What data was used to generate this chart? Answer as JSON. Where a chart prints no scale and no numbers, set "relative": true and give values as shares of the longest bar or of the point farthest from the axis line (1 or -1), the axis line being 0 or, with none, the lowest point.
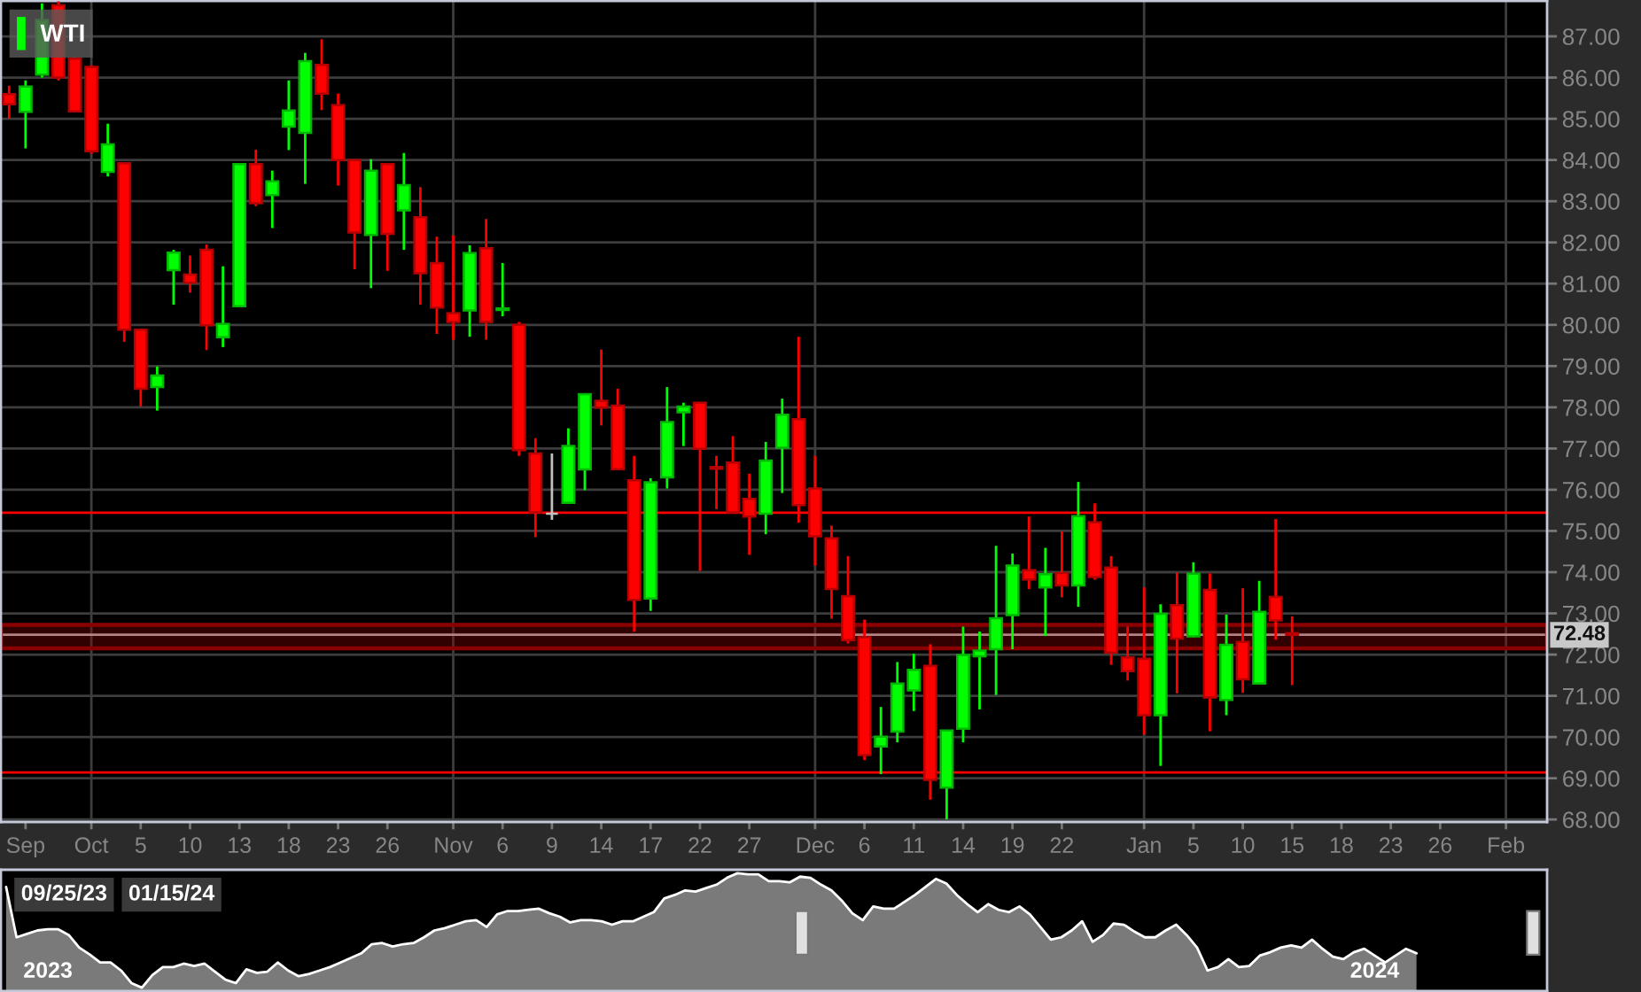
{
  "chart_data": [
    {
      "type": "candlestick",
      "categories": [
        null,
        "Sep",
        null,
        null,
        null,
        "Oct",
        null,
        null,
        "5",
        null,
        null,
        "10",
        null,
        null,
        "13",
        null,
        null,
        "18",
        null,
        null,
        "23",
        null,
        null,
        "26",
        null,
        null,
        null,
        "Nov",
        null,
        null,
        "6",
        null,
        null,
        "9",
        null,
        null,
        "14",
        null,
        null,
        "17",
        null,
        null,
        "22",
        null,
        null,
        "27",
        null,
        null,
        null,
        "Dec",
        null,
        null,
        "6",
        null,
        null,
        "11",
        null,
        null,
        "14",
        null,
        null,
        "19",
        null,
        null,
        "22",
        null,
        null,
        null,
        null,
        "Jan",
        null,
        null,
        "5",
        null,
        null,
        "10",
        null,
        null,
        "15",
        null,
        null,
        "18",
        null,
        null,
        "23",
        null,
        null,
        "26",
        null,
        null,
        null,
        "Feb",
        null,
        null
      ],
      "series": [
        {
          "name": "WTI",
          "color": "#00ff00",
          "ohlc": [
            [
              85.6,
              85.8,
              85.0,
              85.35
            ],
            [
              85.17,
              85.93,
              84.28,
              85.78
            ],
            [
              86.07,
              87.8,
              86.0,
              87.4
            ],
            [
              87.75,
              87.85,
              85.93,
              86.0
            ],
            [
              86.46,
              86.5,
              85.15,
              85.18
            ],
            [
              86.26,
              86.3,
              84.15,
              84.21
            ],
            [
              83.71,
              84.88,
              83.6,
              84.38
            ],
            [
              83.92,
              83.95,
              79.59,
              79.88
            ],
            [
              79.88,
              79.9,
              78.02,
              78.45
            ],
            [
              78.49,
              78.99,
              77.92,
              78.77
            ],
            [
              81.33,
              81.82,
              80.49,
              81.75
            ],
            [
              81.22,
              81.68,
              80.78,
              81.02
            ],
            [
              81.82,
              81.95,
              79.39,
              79.99
            ],
            [
              79.7,
              81.42,
              79.46,
              80.02
            ],
            [
              80.45,
              83.92,
              80.45,
              83.9
            ],
            [
              83.9,
              84.25,
              82.88,
              82.95
            ],
            [
              83.15,
              83.74,
              82.35,
              83.48
            ],
            [
              84.81,
              85.93,
              84.24,
              85.2
            ],
            [
              84.66,
              86.6,
              83.42,
              86.4
            ],
            [
              86.31,
              86.93,
              85.21,
              85.61
            ],
            [
              85.33,
              85.61,
              83.38,
              84.0
            ],
            [
              84.0,
              84.02,
              81.35,
              82.24
            ],
            [
              82.18,
              84.02,
              80.89,
              83.74
            ],
            [
              83.9,
              83.92,
              81.31,
              82.21
            ],
            [
              82.78,
              84.17,
              81.82,
              83.39
            ],
            [
              82.61,
              83.34,
              80.49,
              81.25
            ],
            [
              81.5,
              82.14,
              79.78,
              80.42
            ],
            [
              80.28,
              82.17,
              79.64,
              80.07
            ],
            [
              80.35,
              81.93,
              79.71,
              81.74
            ],
            [
              81.86,
              82.57,
              79.64,
              80.07
            ],
            [
              80.36,
              81.5,
              80.21,
              80.4
            ],
            [
              80.0,
              80.07,
              76.82,
              76.96
            ],
            [
              76.88,
              77.25,
              74.85,
              75.45
            ],
            [
              75.42,
              76.88,
              75.27,
              75.42
            ],
            [
              75.68,
              77.49,
              75.66,
              77.06
            ],
            [
              76.49,
              78.34,
              75.99,
              78.32
            ],
            [
              78.16,
              79.4,
              77.56,
              77.99
            ],
            [
              78.04,
              78.45,
              76.48,
              76.5
            ],
            [
              76.23,
              76.82,
              72.56,
              73.33
            ],
            [
              73.36,
              76.28,
              73.06,
              76.18
            ],
            [
              76.3,
              78.49,
              76.03,
              77.64
            ],
            [
              77.88,
              78.11,
              77.06,
              78.02
            ],
            [
              78.11,
              78.13,
              74.03,
              76.99
            ],
            [
              76.55,
              76.82,
              75.53,
              76.51
            ],
            [
              76.66,
              77.3,
              75.42,
              75.45
            ],
            [
              75.78,
              76.39,
              74.42,
              75.35
            ],
            [
              75.42,
              77.16,
              74.92,
              76.71
            ],
            [
              77.02,
              78.21,
              75.92,
              77.82
            ],
            [
              77.71,
              79.71,
              75.2,
              75.63
            ],
            [
              76.03,
              76.82,
              74.16,
              74.87
            ],
            [
              74.82,
              75.13,
              72.87,
              73.59
            ],
            [
              73.42,
              74.39,
              72.27,
              72.35
            ],
            [
              72.42,
              72.85,
              69.44,
              69.56
            ],
            [
              69.77,
              70.73,
              69.1,
              70.01
            ],
            [
              70.13,
              71.82,
              69.87,
              71.3
            ],
            [
              71.13,
              72.02,
              70.63,
              71.63
            ],
            [
              71.73,
              72.25,
              68.48,
              68.96
            ],
            [
              68.77,
              70.17,
              68.0,
              70.16
            ],
            [
              70.2,
              72.68,
              69.87,
              71.99
            ],
            [
              71.96,
              72.56,
              70.67,
              72.1
            ],
            [
              72.13,
              74.64,
              71.02,
              72.88
            ],
            [
              72.96,
              74.45,
              72.13,
              74.16
            ],
            [
              74.05,
              75.35,
              73.59,
              73.82
            ],
            [
              73.63,
              74.59,
              72.45,
              73.95
            ],
            [
              73.98,
              74.99,
              73.39,
              73.68
            ],
            [
              73.68,
              76.19,
              73.16,
              75.36
            ],
            [
              75.21,
              75.67,
              73.82,
              73.88
            ],
            [
              74.11,
              74.39,
              71.75,
              72.05
            ],
            [
              71.93,
              72.68,
              71.37,
              71.6
            ],
            [
              71.9,
              73.63,
              70.06,
              70.53
            ],
            [
              70.53,
              73.22,
              69.3,
              72.99
            ],
            [
              73.2,
              73.99,
              71.06,
              72.39
            ],
            [
              72.44,
              74.24,
              72.42,
              73.96
            ],
            [
              73.57,
              73.97,
              70.14,
              70.96
            ],
            [
              70.9,
              72.97,
              70.53,
              72.24
            ],
            [
              72.31,
              73.61,
              71.07,
              71.4
            ],
            [
              71.3,
              73.79,
              71.28,
              73.04
            ],
            [
              73.4,
              75.29,
              72.36,
              72.83
            ],
            [
              72.52,
              72.93,
              71.26,
              72.48
            ],
            null,
            null,
            null,
            null,
            null,
            null,
            null,
            null,
            null,
            null,
            null,
            null,
            null,
            null,
            null
          ],
          "colors": [
            "#ff0000",
            "#00ff00",
            "#00ff00",
            "#ff0000",
            "#ff0000",
            "#ff0000",
            "#00ff00",
            "#ff0000",
            "#ff0000",
            "#00ff00",
            "#00ff00",
            "#ff0000",
            "#ff0000",
            "#00ff00",
            "#00ff00",
            "#ff0000",
            "#00ff00",
            "#00ff00",
            "#00ff00",
            "#ff0000",
            "#ff0000",
            "#ff0000",
            "#00ff00",
            "#ff0000",
            "#00ff00",
            "#ff0000",
            "#ff0000",
            "#ff0000",
            "#00ff00",
            "#ff0000",
            "#00ff00",
            "#ff0000",
            "#ff0000",
            "#c0c0c0",
            "#00ff00",
            "#00ff00",
            "#ff0000",
            "#ff0000",
            "#ff0000",
            "#00ff00",
            "#00ff00",
            "#00ff00",
            "#ff0000",
            "#ff0000",
            "#ff0000",
            "#ff0000",
            "#00ff00",
            "#00ff00",
            "#ff0000",
            "#ff0000",
            "#ff0000",
            "#ff0000",
            "#ff0000",
            "#00ff00",
            "#00ff00",
            "#00ff00",
            "#ff0000",
            "#00ff00",
            "#00ff00",
            "#00ff00",
            "#00ff00",
            "#00ff00",
            "#ff0000",
            "#00ff00",
            "#ff0000",
            "#00ff00",
            "#ff0000",
            "#ff0000",
            "#ff0000",
            "#ff0000",
            "#00ff00",
            "#ff0000",
            "#00ff00",
            "#ff0000",
            "#00ff00",
            "#ff0000",
            "#00ff00",
            "#ff0000",
            "#ff0000",
            null,
            null,
            null,
            null,
            null,
            null,
            null,
            null,
            null,
            null,
            null,
            null,
            null,
            null,
            null
          ]
        }
      ],
      "ylim": [
        67.94,
        87.86
      ],
      "yticks": [
        {
          "value": 68,
          "label": "68.00"
        },
        {
          "value": 69,
          "label": "69.00"
        },
        {
          "value": 70,
          "label": "70.00"
        },
        {
          "value": 71,
          "label": "71.00"
        },
        {
          "value": 72,
          "label": "72.00"
        },
        {
          "value": 73,
          "label": "73.00"
        },
        {
          "value": 74,
          "label": "74.00"
        },
        {
          "value": 75,
          "label": "75.00"
        },
        {
          "value": 76,
          "label": "76.00"
        },
        {
          "value": 77,
          "label": "77.00"
        },
        {
          "value": 78,
          "label": "78.00"
        },
        {
          "value": 79,
          "label": "79.00"
        },
        {
          "value": 80,
          "label": "80.00"
        },
        {
          "value": 81,
          "label": "81.00"
        },
        {
          "value": 82,
          "label": "82.00"
        },
        {
          "value": 83,
          "label": "83.00"
        },
        {
          "value": 84,
          "label": "84.00"
        },
        {
          "value": 85,
          "label": "85.00"
        },
        {
          "value": 86,
          "label": "86.00"
        },
        {
          "value": 87,
          "label": "87.00"
        }
      ],
      "grid": "y",
      "legend": "top left",
      "ref_lines": [
        {
          "axis": "y",
          "value": 72.48,
          "label": "72.48",
          "color": "#c8c8c8"
        },
        {
          "axis": "y",
          "value": 75.44,
          "color": "#ff0000"
        },
        {
          "axis": "y",
          "value": 69.14,
          "color": "#ff0000"
        },
        {
          "axis": "x",
          "value": "Oct",
          "color": "#3d3d3d"
        },
        {
          "axis": "x",
          "value": "Nov",
          "color": "#3d3d3d"
        },
        {
          "axis": "x",
          "value": "Dec",
          "color": "#3d3d3d"
        },
        {
          "axis": "x",
          "value": "Jan",
          "color": "#3d3d3d"
        },
        {
          "axis": "x",
          "value": "Feb",
          "color": "#3d3d3d"
        }
      ],
      "bands": [
        {
          "axis": "y",
          "from": 72.15,
          "to": 72.72,
          "color": "#8b0000"
        }
      ]
    },
    {
      "type": "area",
      "relative": true,
      "color": "#7a7a7a",
      "categories": [
        null,
        null,
        null,
        null,
        "2023",
        null,
        null,
        null,
        null,
        null,
        null,
        null,
        null,
        null,
        null,
        null,
        null,
        null,
        null,
        null,
        null,
        null,
        null,
        null,
        null,
        null,
        null,
        null,
        null,
        null,
        null,
        null,
        null,
        null,
        null,
        null,
        null,
        null,
        null,
        null,
        null,
        null,
        null,
        null,
        null,
        null,
        null,
        null,
        null,
        null,
        null,
        null,
        null,
        null,
        null,
        null,
        null,
        null,
        null,
        null,
        null,
        null,
        null,
        null,
        null,
        null,
        null,
        null,
        null,
        null,
        null,
        null,
        null,
        null,
        null,
        null,
        null,
        null,
        null,
        null,
        null,
        null,
        null,
        null,
        null,
        null,
        null,
        null,
        null,
        null,
        null,
        null,
        null,
        null,
        null,
        null,
        null,
        null,
        null,
        null,
        null,
        null,
        null,
        null,
        null,
        null,
        null,
        null,
        null,
        null,
        null,
        null,
        null,
        null,
        null,
        null,
        null,
        null,
        null,
        null,
        null,
        null,
        null,
        null,
        null,
        null,
        null,
        null,
        null,
        null,
        null,
        "2024",
        null,
        null,
        null,
        null,
        null,
        null,
        null,
        null,
        null,
        null,
        null,
        null,
        null,
        null,
        null,
        null
      ],
      "values": [
        0.88,
        0.44,
        0.47,
        0.5,
        0.51,
        0.51,
        0.46,
        0.35,
        0.29,
        0.22,
        0.22,
        0.15,
        0.04,
        0,
        0.11,
        0.18,
        0.18,
        0.21,
        0.19,
        0.21,
        0.14,
        0.07,
        0.04,
        0.16,
        0.13,
        0.14,
        0.22,
        0.15,
        0.1,
        0.12,
        0.15,
        0.18,
        0.22,
        0.26,
        0.3,
        0.38,
        0.39,
        0.36,
        0.38,
        0.39,
        0.44,
        0.5,
        0.52,
        0.55,
        0.58,
        0.59,
        0.53,
        0.64,
        0.67,
        0.67,
        0.68,
        0.69,
        0.65,
        0.62,
        0.57,
        0.59,
        0.59,
        0.58,
        0.55,
        0.58,
        0.58,
        0.62,
        0.66,
        0.78,
        0.81,
        0.85,
        0.84,
        0.87,
        0.9,
        0.96,
        1,
        0.99,
        0.99,
        0.93,
        0.93,
        0.92,
        0.97,
        0.96,
        0.9,
        0.85,
        0.76,
        0.65,
        0.59,
        0.71,
        0.69,
        0.69,
        0.75,
        0.81,
        0.88,
        0.95,
        0.91,
        0.81,
        0.73,
        0.66,
        0.73,
        0.68,
        0.66,
        0.71,
        0.64,
        0.53,
        0.42,
        0.44,
        0.5,
        0.58,
        0.4,
        0.46,
        0.56,
        0.55,
        0.49,
        0.44,
        0.44,
        0.5,
        0.55,
        0.46,
        0.35,
        0.15,
        0.18,
        0.25,
        0.18,
        0.19,
        0.28,
        0.31,
        0.35,
        0.37,
        0.35,
        0.42,
        0.34,
        0.27,
        0.25,
        0.31,
        0.34,
        0.28,
        0.22,
        0.28,
        0.34,
        0.3,
        null,
        null,
        null,
        null,
        null,
        null,
        null,
        null,
        null,
        null,
        null,
        null
      ],
      "annotations": [
        "09/25/23",
        "01/15/24"
      ]
    }
  ]
}
